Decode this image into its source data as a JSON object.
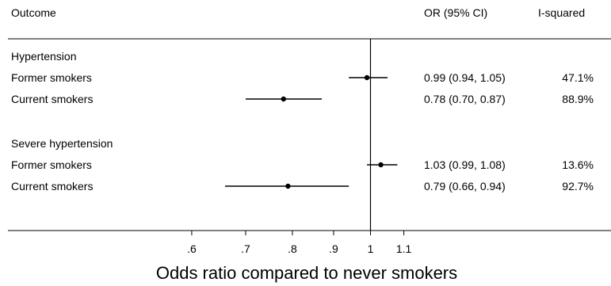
{
  "chart_data": {
    "type": "forest",
    "headers": {
      "outcome": "Outcome",
      "or_ci": "OR (95% CI)",
      "i_squared": "I-squared"
    },
    "xlabel": "Odds ratio compared to never smokers",
    "x_scale": "log",
    "xlim": [
      0.55,
      1.13
    ],
    "xticks": [
      0.6,
      0.7,
      0.8,
      0.9,
      1,
      1.1
    ],
    "xtick_labels": [
      ".6",
      ".7",
      ".8",
      ".9",
      "1",
      "1.1"
    ],
    "reference_line": 1,
    "groups": [
      {
        "name": "Hypertension",
        "rows": [
          {
            "label": "Former smokers",
            "or": 0.99,
            "lo": 0.94,
            "hi": 1.05,
            "or_text": "0.99 (0.94, 1.05)",
            "i2_text": "47.1%"
          },
          {
            "label": "Current smokers",
            "or": 0.78,
            "lo": 0.7,
            "hi": 0.87,
            "or_text": "0.78 (0.70, 0.87)",
            "i2_text": "88.9%"
          }
        ]
      },
      {
        "name": "Severe hypertension",
        "rows": [
          {
            "label": "Former smokers",
            "or": 1.03,
            "lo": 0.99,
            "hi": 1.08,
            "or_text": "1.03 (0.99, 1.08)",
            "i2_text": "13.6%"
          },
          {
            "label": "Current smokers",
            "or": 0.79,
            "lo": 0.66,
            "hi": 0.94,
            "or_text": "0.79 (0.66, 0.94)",
            "i2_text": "92.7%"
          }
        ]
      }
    ]
  }
}
